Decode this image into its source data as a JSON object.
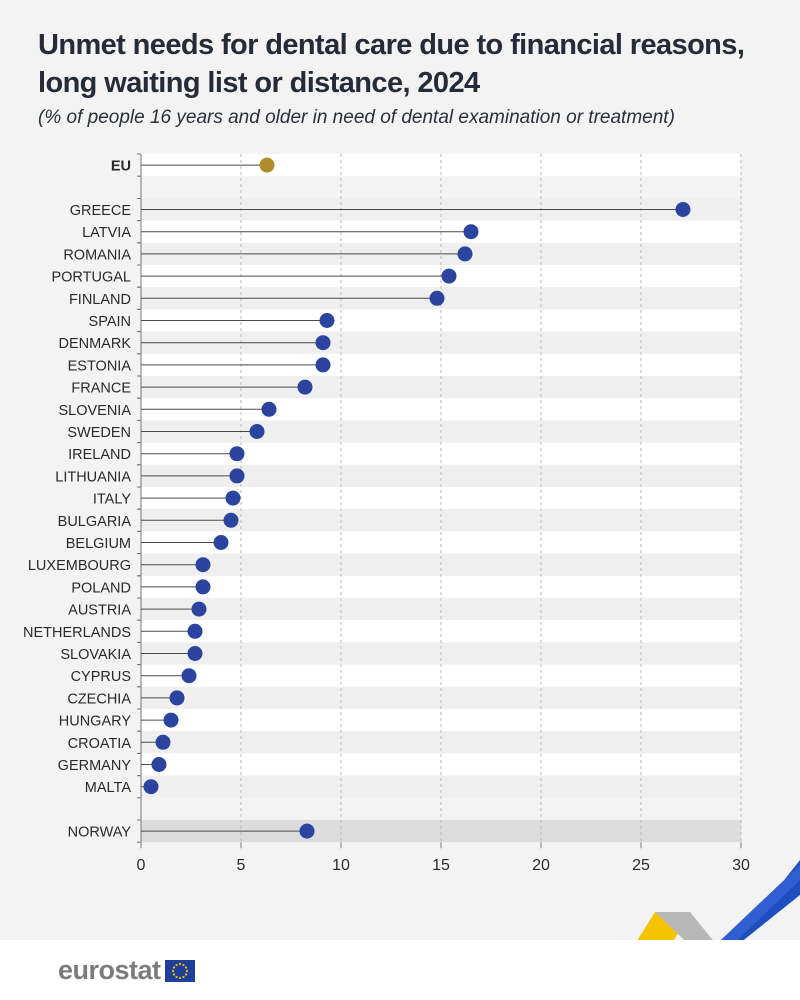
{
  "title_lines": [
    "Unmet needs for dental care due to financial reasons,",
    "long waiting list or distance, 2024"
  ],
  "subtitle": "(% of people 16 years and older in need of dental examination or treatment)",
  "brand": "eurostat",
  "colors": {
    "eu_dot": "#b08d2c",
    "country_dot": "#2a44a0",
    "stem": "#4a4a4a",
    "row_alt": "#ffffff",
    "row_base": "#efefef",
    "norway_band": "#dcdcdc",
    "grid": "#b9b9b9"
  },
  "chart_data": {
    "type": "lollipop-horizontal",
    "title": "Unmet needs for dental care due to financial reasons, long waiting list or distance, 2024",
    "subtitle": "(% of people 16 years and older in need of dental examination or treatment)",
    "xlim": [
      0,
      30
    ],
    "xticks": [
      0,
      5,
      10,
      15,
      20,
      25,
      30
    ],
    "grid": "vertical dashed",
    "groups": [
      {
        "name": "EU",
        "items": [
          {
            "label": "EU",
            "value": 6.3
          }
        ]
      },
      {
        "name": "countries",
        "items": [
          {
            "label": "GREECE",
            "value": 27.1
          },
          {
            "label": "LATVIA",
            "value": 16.5
          },
          {
            "label": "ROMANIA",
            "value": 16.2
          },
          {
            "label": "PORTUGAL",
            "value": 15.4
          },
          {
            "label": "FINLAND",
            "value": 14.8
          },
          {
            "label": "SPAIN",
            "value": 9.3
          },
          {
            "label": "DENMARK",
            "value": 9.1
          },
          {
            "label": "ESTONIA",
            "value": 9.1
          },
          {
            "label": "FRANCE",
            "value": 8.2
          },
          {
            "label": "SLOVENIA",
            "value": 6.4
          },
          {
            "label": "SWEDEN",
            "value": 5.8
          },
          {
            "label": "IRELAND",
            "value": 4.8
          },
          {
            "label": "LITHUANIA",
            "value": 4.8
          },
          {
            "label": "ITALY",
            "value": 4.6
          },
          {
            "label": "BULGARIA",
            "value": 4.5
          },
          {
            "label": "BELGIUM",
            "value": 4.0
          },
          {
            "label": "LUXEMBOURG",
            "value": 3.1
          },
          {
            "label": "POLAND",
            "value": 3.1
          },
          {
            "label": "AUSTRIA",
            "value": 2.9
          },
          {
            "label": "NETHERLANDS",
            "value": 2.7
          },
          {
            "label": "SLOVAKIA",
            "value": 2.7
          },
          {
            "label": "CYPRUS",
            "value": 2.4
          },
          {
            "label": "CZECHIA",
            "value": 1.8
          },
          {
            "label": "HUNGARY",
            "value": 1.5
          },
          {
            "label": "CROATIA",
            "value": 1.1
          },
          {
            "label": "GERMANY",
            "value": 0.9
          },
          {
            "label": "MALTA",
            "value": 0.5
          }
        ]
      },
      {
        "name": "other",
        "items": [
          {
            "label": "NORWAY",
            "value": 8.3
          }
        ]
      }
    ]
  }
}
